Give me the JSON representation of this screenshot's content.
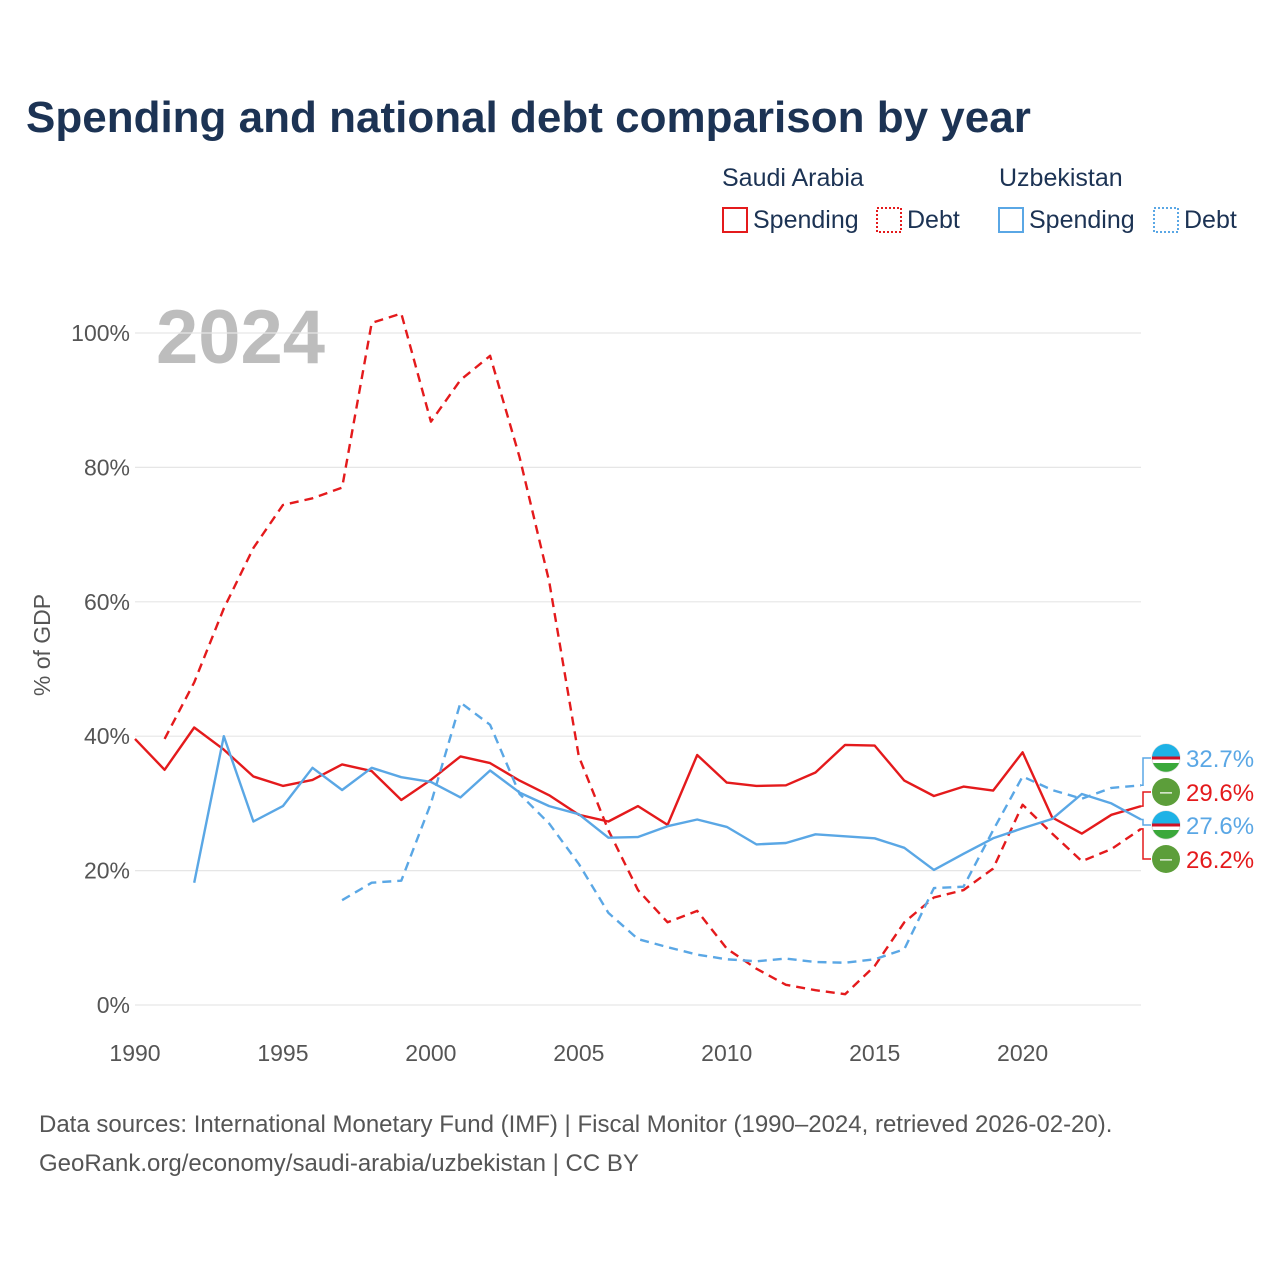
{
  "title": "Spending and national debt comparison by year",
  "year_watermark": "2024",
  "colors": {
    "saudi": "#e41a1c",
    "uzbek": "#5aa7e5",
    "grid": "#e6e6e6",
    "title": "#1c3354",
    "watermark": "#bdbdbd"
  },
  "legend": {
    "group1": "Saudi Arabia",
    "group2": "Uzbekistan",
    "spending": "Spending",
    "debt": "Debt"
  },
  "end_labels": [
    {
      "text": "32.7%",
      "country": "uzbek",
      "flag": "uzbekistan-flag-icon"
    },
    {
      "text": "29.6%",
      "country": "saudi",
      "flag": "saudi-flag-icon"
    },
    {
      "text": "27.6%",
      "country": "uzbek",
      "flag": "uzbekistan-flag-icon"
    },
    {
      "text": "26.2%",
      "country": "saudi",
      "flag": "saudi-flag-icon"
    }
  ],
  "footer": {
    "line1": "Data sources: International Monetary Fund (IMF) | Fiscal Monitor (1990–2024, retrieved 2026-02-20).",
    "line2": "GeoRank.org/economy/saudi-arabia/uzbekistan | CC BY"
  },
  "chart_data": {
    "type": "line",
    "title": "Spending and national debt comparison by year",
    "xlabel": "",
    "ylabel": "% of GDP",
    "xlim": [
      1990,
      2024
    ],
    "ylim": [
      0,
      100
    ],
    "xticks": [
      1990,
      1995,
      2000,
      2005,
      2010,
      2015,
      2020
    ],
    "xtick_labels": [
      "1990",
      "1995",
      "2000",
      "2005",
      "2010",
      "2015",
      "2020"
    ],
    "yticks": [
      0,
      20,
      40,
      60,
      80,
      100
    ],
    "ytick_labels": [
      "0%",
      "20%",
      "40%",
      "60%",
      "80%",
      "100%"
    ],
    "grid": true,
    "legend_position": "top-right",
    "series": [
      {
        "name": "Saudi Arabia Spending",
        "country": "saudi",
        "style": "solid",
        "x": [
          1990,
          1991,
          1992,
          1993,
          1994,
          1995,
          1996,
          1997,
          1998,
          1999,
          2000,
          2001,
          2002,
          2003,
          2004,
          2005,
          2006,
          2007,
          2008,
          2009,
          2010,
          2011,
          2012,
          2013,
          2014,
          2015,
          2016,
          2017,
          2018,
          2019,
          2020,
          2021,
          2022,
          2023,
          2024
        ],
        "values": [
          39.6,
          35.0,
          41.3,
          38.0,
          34.0,
          32.6,
          33.5,
          35.8,
          34.8,
          30.5,
          33.5,
          37.0,
          36.0,
          33.4,
          31.2,
          28.3,
          27.3,
          29.6,
          26.8,
          37.2,
          33.1,
          32.6,
          32.7,
          34.6,
          38.7,
          38.6,
          33.4,
          31.1,
          32.5,
          31.9,
          37.6,
          27.9,
          25.5,
          28.3,
          29.6
        ]
      },
      {
        "name": "Saudi Arabia Debt",
        "country": "saudi",
        "style": "dashed",
        "x": [
          1991,
          1992,
          1993,
          1994,
          1995,
          1996,
          1997,
          1998,
          1999,
          2000,
          2001,
          2002,
          2003,
          2004,
          2005,
          2006,
          2007,
          2008,
          2009,
          2010,
          2011,
          2012,
          2013,
          2014,
          2015,
          2016,
          2017,
          2018,
          2019,
          2020,
          2021,
          2022,
          2023,
          2024
        ],
        "values": [
          39.6,
          48.0,
          59.0,
          68.0,
          74.4,
          75.4,
          77.0,
          101.5,
          102.9,
          86.8,
          93.0,
          96.6,
          81.5,
          63.0,
          37.0,
          26.0,
          17.1,
          12.3,
          14.0,
          8.4,
          5.4,
          3.0,
          2.2,
          1.6,
          5.8,
          12.3,
          16.0,
          17.1,
          20.3,
          29.8,
          25.5,
          21.4,
          23.2,
          26.2
        ]
      },
      {
        "name": "Uzbekistan Spending",
        "country": "uzbek",
        "style": "solid",
        "x": [
          1992,
          1993,
          1994,
          1995,
          1996,
          1997,
          1998,
          1999,
          2000,
          2001,
          2002,
          2003,
          2004,
          2005,
          2006,
          2007,
          2008,
          2009,
          2010,
          2011,
          2012,
          2013,
          2014,
          2015,
          2016,
          2017,
          2018,
          2019,
          2020,
          2021,
          2022,
          2023,
          2024
        ],
        "values": [
          18.2,
          40.0,
          27.3,
          29.6,
          35.3,
          32.0,
          35.3,
          33.9,
          33.2,
          30.9,
          34.9,
          31.6,
          29.6,
          28.4,
          24.9,
          25.0,
          26.6,
          27.6,
          26.5,
          23.9,
          24.1,
          25.4,
          25.1,
          24.8,
          23.4,
          20.1,
          22.5,
          24.8,
          26.3,
          27.7,
          31.4,
          30.0,
          27.6
        ]
      },
      {
        "name": "Uzbekistan Debt",
        "country": "uzbek",
        "style": "dashed",
        "x": [
          1997,
          1998,
          1999,
          2000,
          2001,
          2002,
          2003,
          2004,
          2005,
          2006,
          2007,
          2008,
          2009,
          2010,
          2011,
          2012,
          2013,
          2014,
          2015,
          2016,
          2017,
          2018,
          2019,
          2020,
          2021,
          2022,
          2023,
          2024
        ],
        "values": [
          15.6,
          18.2,
          18.5,
          30.0,
          45.0,
          41.7,
          31.4,
          27.0,
          21.0,
          13.7,
          9.8,
          8.6,
          7.5,
          6.8,
          6.5,
          6.9,
          6.4,
          6.3,
          6.8,
          8.3,
          17.4,
          17.6,
          26.0,
          34.0,
          32.0,
          30.7,
          32.3,
          32.7
        ]
      }
    ]
  }
}
